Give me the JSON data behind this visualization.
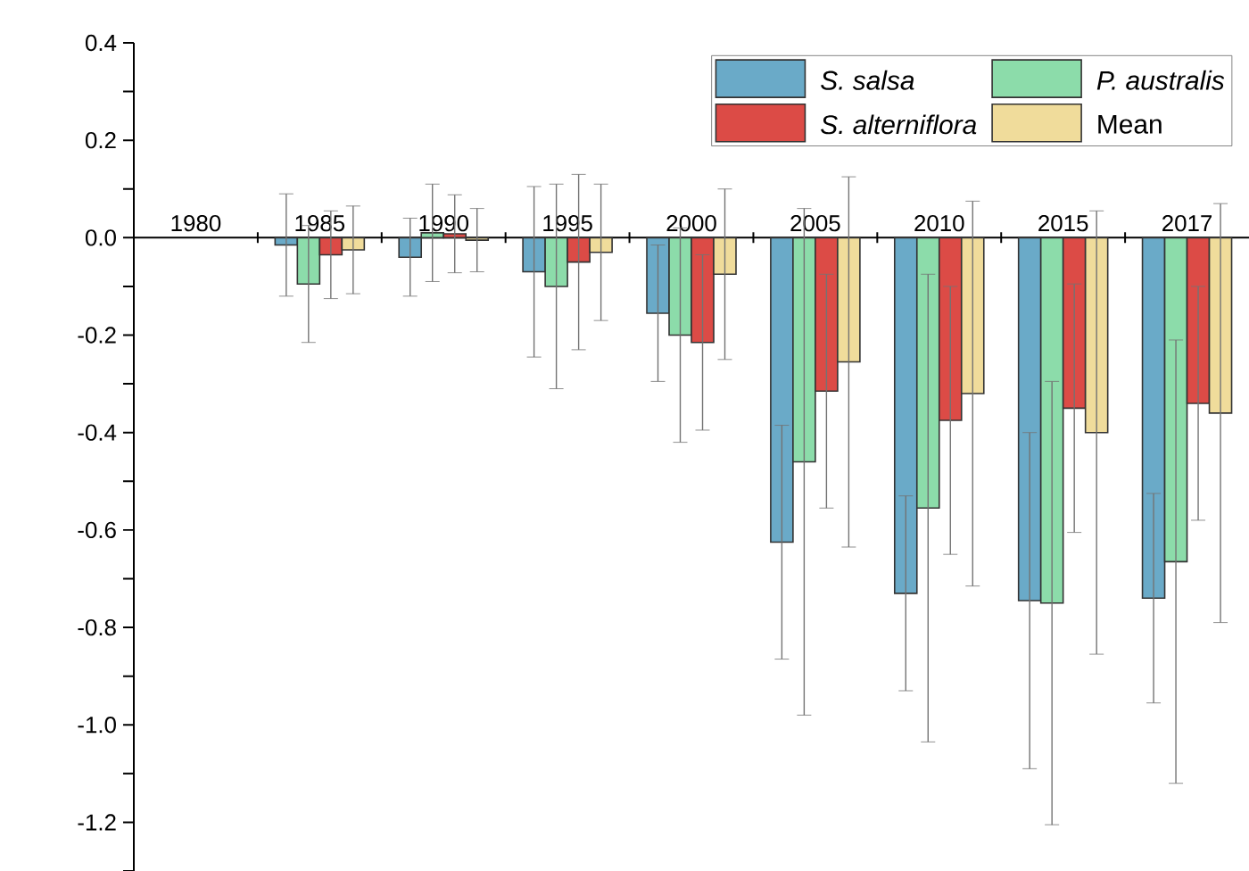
{
  "chart_data": {
    "type": "bar",
    "categories": [
      "1980",
      "1985",
      "1990",
      "1995",
      "2000",
      "2005",
      "2010",
      "2015",
      "2017"
    ],
    "series": [
      {
        "name": "*S. salsa*",
        "color": "#6aaac8",
        "values": [
          null,
          -0.015,
          -0.04,
          -0.07,
          -0.155,
          -0.625,
          -0.73,
          -0.745,
          -0.74
        ],
        "errors": [
          null,
          0.105,
          0.08,
          0.175,
          0.14,
          0.24,
          0.2,
          0.345,
          0.215
        ]
      },
      {
        "name": "*P. australis*",
        "color": "#8cdcaa",
        "values": [
          null,
          -0.095,
          0.01,
          -0.1,
          -0.2,
          -0.46,
          -0.555,
          -0.75,
          -0.665
        ],
        "errors": [
          null,
          0.12,
          0.1,
          0.21,
          0.22,
          0.52,
          0.48,
          0.455,
          0.455
        ]
      },
      {
        "name": "*S. alterniflora*",
        "color": "#dc4b46",
        "values": [
          null,
          -0.035,
          0.008,
          -0.05,
          -0.215,
          -0.315,
          -0.375,
          -0.35,
          -0.34
        ],
        "errors": [
          null,
          0.09,
          0.08,
          0.18,
          0.18,
          0.24,
          0.275,
          0.255,
          0.24
        ]
      },
      {
        "name": "Mean",
        "color": "#f0dc9b",
        "values": [
          null,
          -0.025,
          -0.005,
          -0.03,
          -0.075,
          -0.255,
          -0.32,
          -0.4,
          -0.36
        ],
        "errors": [
          null,
          0.09,
          0.065,
          0.14,
          0.175,
          0.38,
          0.395,
          0.455,
          0.43
        ]
      }
    ],
    "ylim": [
      -1.3,
      0.4
    ],
    "yticks": [
      {
        "value": -1.3,
        "label": null
      },
      -1.2,
      {
        "value": -1.1,
        "label": null
      },
      {
        "value": -1.0,
        "label": "-1.0"
      },
      {
        "value": -0.9,
        "label": null
      },
      -0.8,
      {
        "value": -0.7,
        "label": null
      },
      -0.6,
      {
        "value": -0.5,
        "label": null
      },
      -0.4,
      {
        "value": -0.3,
        "label": null
      },
      -0.2,
      {
        "value": -0.1,
        "label": null
      },
      {
        "value": 0.0,
        "label": "0.0"
      },
      {
        "value": 0.1,
        "label": null
      },
      0.2,
      {
        "value": 0.3,
        "label": null
      },
      0.4
    ],
    "legend": "top right"
  }
}
